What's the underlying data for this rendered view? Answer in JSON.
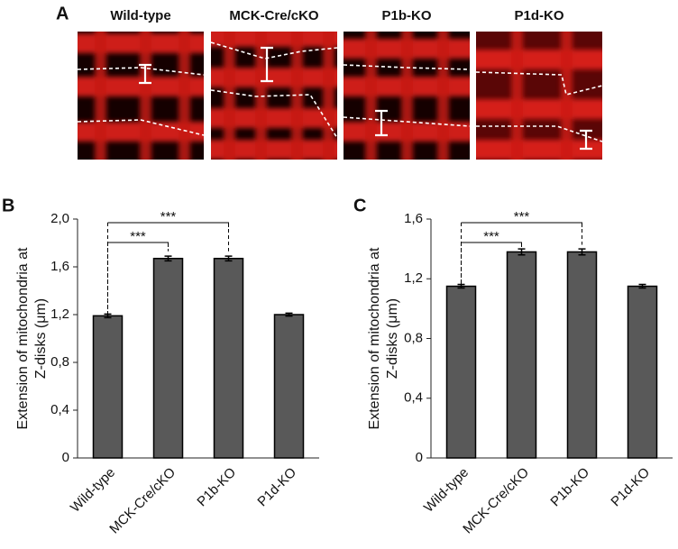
{
  "panel_a": {
    "label": "A",
    "images": [
      "Wild-type",
      "MCK-Cre/cKO",
      "P1b-KO",
      "P1d-KO"
    ]
  },
  "chart_data": [
    {
      "type": "bar",
      "panel_label": "B",
      "ylabel": [
        "Extension of mitochondria at",
        "Z-disks (μm)"
      ],
      "categories": [
        "Wild-type",
        "MCK-Cre/cKO",
        "P1b-KO",
        "P1d-KO"
      ],
      "values": [
        1.19,
        1.67,
        1.67,
        1.2
      ],
      "errors": [
        0.015,
        0.02,
        0.02,
        0.012
      ],
      "color": "#595959",
      "ylim": [
        0,
        2.0
      ],
      "yticks": [
        0,
        {
          "value": 0.4,
          "label": "0,4"
        },
        {
          "value": 0.8,
          "label": "0,8"
        },
        {
          "value": 1.2,
          "label": "1,2"
        },
        {
          "value": 1.6,
          "label": "1,6"
        },
        {
          "value": 2.0,
          "label": "2,0"
        }
      ],
      "annotations": [
        {
          "text": "***",
          "between": [
            0,
            1
          ]
        },
        {
          "text": "***",
          "between": [
            0,
            2
          ]
        }
      ]
    },
    {
      "type": "bar",
      "panel_label": "C",
      "ylabel": [
        "Extension of mitochondria at",
        "Z-disks (μm)"
      ],
      "categories": [
        "Wild-type",
        "MCK-Cre/cKO",
        "P1b-KO",
        "P1d-KO"
      ],
      "values": [
        1.15,
        1.38,
        1.38,
        1.15
      ],
      "errors": [
        0.012,
        0.02,
        0.02,
        0.012
      ],
      "color": "#595959",
      "ylim": [
        0,
        1.6
      ],
      "yticks": [
        0,
        {
          "value": 0.4,
          "label": "0,4"
        },
        {
          "value": 0.8,
          "label": "0,8"
        },
        {
          "value": 1.2,
          "label": "1,2"
        },
        {
          "value": 1.6,
          "label": "1,6"
        }
      ],
      "annotations": [
        {
          "text": "***",
          "between": [
            0,
            1
          ]
        },
        {
          "text": "***",
          "between": [
            0,
            2
          ]
        }
      ]
    }
  ]
}
